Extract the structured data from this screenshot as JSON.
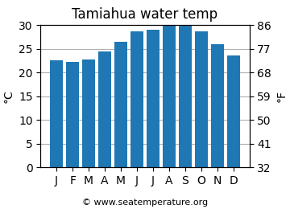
{
  "chart_data": {
    "type": "bar",
    "title": "Tamiahua water temp",
    "categories": [
      "J",
      "F",
      "M",
      "A",
      "M",
      "J",
      "J",
      "A",
      "S",
      "O",
      "N",
      "D"
    ],
    "values": [
      22.5,
      22.3,
      22.8,
      24.5,
      26.4,
      28.7,
      29.0,
      29.9,
      29.9,
      28.7,
      26.0,
      23.6
    ],
    "ylabel": "°C",
    "y2label": "°F",
    "ylim": [
      0,
      30
    ],
    "yticks": [
      0,
      5,
      10,
      15,
      20,
      25,
      30
    ],
    "y2lim": [
      32,
      86
    ],
    "y2ticks": [
      32,
      41,
      50,
      59,
      68,
      77,
      86
    ],
    "grid": true,
    "annotation": "© www.seatemperature.org"
  }
}
